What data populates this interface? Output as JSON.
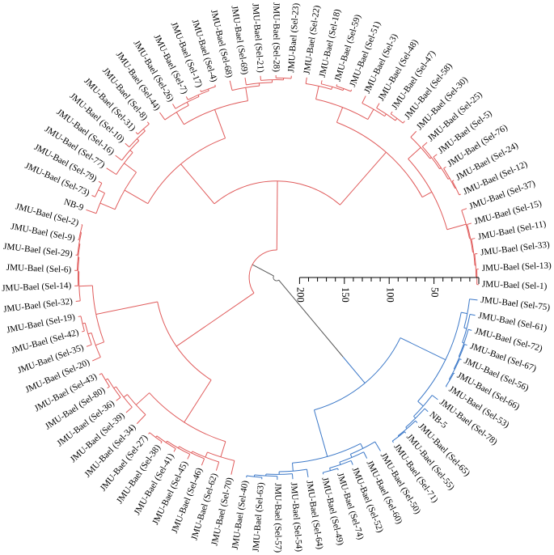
{
  "diagram": {
    "colors": {
      "cluster_red": "#e05b5b",
      "cluster_blue": "#3b78c8",
      "root": "#555555",
      "text": "#000000"
    },
    "scale_ticks": [
      "200",
      "150",
      "100",
      "50"
    ],
    "scale_tick_values": [
      200,
      150,
      100,
      50,
      0
    ],
    "leaves": [
      {
        "label": "JMU-Bael (Sel-1)",
        "cluster": "red"
      },
      {
        "label": "JMU-Bael (Sel-13)",
        "cluster": "red"
      },
      {
        "label": "JMU-Bael (Sel-33)",
        "cluster": "red"
      },
      {
        "label": "JMU-Bael (Sel-11)",
        "cluster": "red"
      },
      {
        "label": "JMU-Bael (Sel-15)",
        "cluster": "red"
      },
      {
        "label": "JMU-Bael (Sel-37)",
        "cluster": "red"
      },
      {
        "label": "JMU-Bael (Sel-12)",
        "cluster": "red"
      },
      {
        "label": "JMU-Bael (Sel-24)",
        "cluster": "red"
      },
      {
        "label": "JMU-Bael (Sel-76)",
        "cluster": "red"
      },
      {
        "label": "JMU-Bael (Sel-5)",
        "cluster": "red"
      },
      {
        "label": "JMU-Bael (Sel-25)",
        "cluster": "red"
      },
      {
        "label": "JMU-Bael (Sel-30)",
        "cluster": "red"
      },
      {
        "label": "JMU-Bael (Sel-58)",
        "cluster": "red"
      },
      {
        "label": "JMU-Bael (Sel-47)",
        "cluster": "red"
      },
      {
        "label": "JMU-Bael (Sel-48)",
        "cluster": "red"
      },
      {
        "label": "JMU-Bael (Sel-3)",
        "cluster": "red"
      },
      {
        "label": "JMU-Bael (Sel-51)",
        "cluster": "red"
      },
      {
        "label": "JMU-Bael (Sel-59)",
        "cluster": "red"
      },
      {
        "label": "JMU-Bael (Sel-18)",
        "cluster": "red"
      },
      {
        "label": "JMU-Bael (Sel-22)",
        "cluster": "red"
      },
      {
        "label": "JMU-Bael (Sel-23)",
        "cluster": "red"
      },
      {
        "label": "JMU-Bael (Sel-28)",
        "cluster": "red"
      },
      {
        "label": "JMU-Bael (Sel-21)",
        "cluster": "red"
      },
      {
        "label": "JMU-Bael (Sel-69)",
        "cluster": "red"
      },
      {
        "label": "JMU-Bael (Sel-68)",
        "cluster": "red"
      },
      {
        "label": "JMU-Bael (Sel-4)",
        "cluster": "red"
      },
      {
        "label": "JMU-Bael (Sel-17)",
        "cluster": "red"
      },
      {
        "label": "JMU-Bael (Sel-7)",
        "cluster": "red"
      },
      {
        "label": "JMU-Bael (Sel-26)",
        "cluster": "red"
      },
      {
        "label": "JMU-Bael (Sel-44)",
        "cluster": "red"
      },
      {
        "label": "JMU-Bael (Sel-8)",
        "cluster": "red"
      },
      {
        "label": "JMU-Bael (Sel-31)",
        "cluster": "red"
      },
      {
        "label": "JMU-Bael (Sel-10)",
        "cluster": "red"
      },
      {
        "label": "JMU-Bael (Sel-16)",
        "cluster": "red"
      },
      {
        "label": "JMU-Bael (Sel-77)",
        "cluster": "red"
      },
      {
        "label": "JMU-Bael (Sel-79)",
        "cluster": "red"
      },
      {
        "label": "JMU-Bael (Sel-73)",
        "cluster": "red"
      },
      {
        "label": "NB-9",
        "cluster": "red"
      },
      {
        "label": "JMU-Bael (Sel-2)",
        "cluster": "red"
      },
      {
        "label": "JMU-Bael (Sel-9)",
        "cluster": "red"
      },
      {
        "label": "JMU-Bael (Sel-29)",
        "cluster": "red"
      },
      {
        "label": "JMU-Bael (Sel-6)",
        "cluster": "red"
      },
      {
        "label": "JMU-Bael (Sel-14)",
        "cluster": "red"
      },
      {
        "label": "JMU-Bael (Sel-32)",
        "cluster": "red"
      },
      {
        "label": "JMU-Bael (Sel-19)",
        "cluster": "red"
      },
      {
        "label": "JMU-Bael (Sel-42)",
        "cluster": "red"
      },
      {
        "label": "JMU-Bael (Sel-35)",
        "cluster": "red"
      },
      {
        "label": "JMU-Bael (Sel-20)",
        "cluster": "red"
      },
      {
        "label": "JMU-Bael (Sel-43)",
        "cluster": "red"
      },
      {
        "label": "JMU-Bael (Sel-80)",
        "cluster": "red"
      },
      {
        "label": "JMU-Bael (Sel-36)",
        "cluster": "red"
      },
      {
        "label": "JMU-Bael (Sel-39)",
        "cluster": "red"
      },
      {
        "label": "JMU-Bael (Sel-34)",
        "cluster": "red"
      },
      {
        "label": "JMU-Bael (Sel-27)",
        "cluster": "red"
      },
      {
        "label": "JMU-Bael (Sel-38)",
        "cluster": "red"
      },
      {
        "label": "JMU-Bael (Sel-41)",
        "cluster": "red"
      },
      {
        "label": "JMU-Bael (Sel-45)",
        "cluster": "red"
      },
      {
        "label": "JMU-Bael (Sel-46)",
        "cluster": "red"
      },
      {
        "label": "JMU-Bael (Sel-62)",
        "cluster": "red"
      },
      {
        "label": "JMU-Bael (Sel-70)",
        "cluster": "red"
      },
      {
        "label": "JMU-Bael (Sel-40)",
        "cluster": "blue"
      },
      {
        "label": "JMU-Bael (Sel-63)",
        "cluster": "blue"
      },
      {
        "label": "JMU-Bael (Sel-57)",
        "cluster": "blue"
      },
      {
        "label": "JMU-Bael (Sel-54)",
        "cluster": "blue"
      },
      {
        "label": "JMU-Bael (Sel-64)",
        "cluster": "blue"
      },
      {
        "label": "JMU-Bael (Sel-49)",
        "cluster": "blue"
      },
      {
        "label": "JMU-Bael (Sel-74)",
        "cluster": "blue"
      },
      {
        "label": "JMU-Bael (Sel-52)",
        "cluster": "blue"
      },
      {
        "label": "JMU-Bael (Sel-60)",
        "cluster": "blue"
      },
      {
        "label": "JMU-Bael (Sel-50)",
        "cluster": "blue"
      },
      {
        "label": "JMU-Bael (Sel-71)",
        "cluster": "blue"
      },
      {
        "label": "JMU-Bael (Sel-55)",
        "cluster": "blue"
      },
      {
        "label": "JMU-Bael (Sel-65)",
        "cluster": "blue"
      },
      {
        "label": "NB-5",
        "cluster": "blue"
      },
      {
        "label": "JMU-Bael (Sel-78)",
        "cluster": "blue"
      },
      {
        "label": "JMU-Bael (Sel-53)",
        "cluster": "blue"
      },
      {
        "label": "JMU-Bael (Sel-66)",
        "cluster": "blue"
      },
      {
        "label": "JMU-Bael (Sel-56)",
        "cluster": "blue"
      },
      {
        "label": "JMU-Bael (Sel-67)",
        "cluster": "blue"
      },
      {
        "label": "JMU-Bael (Sel-72)",
        "cluster": "blue"
      },
      {
        "label": "JMU-Bael (Sel-61)",
        "cluster": "blue"
      },
      {
        "label": "JMU-Bael (Sel-75)",
        "cluster": "blue"
      }
    ]
  }
}
